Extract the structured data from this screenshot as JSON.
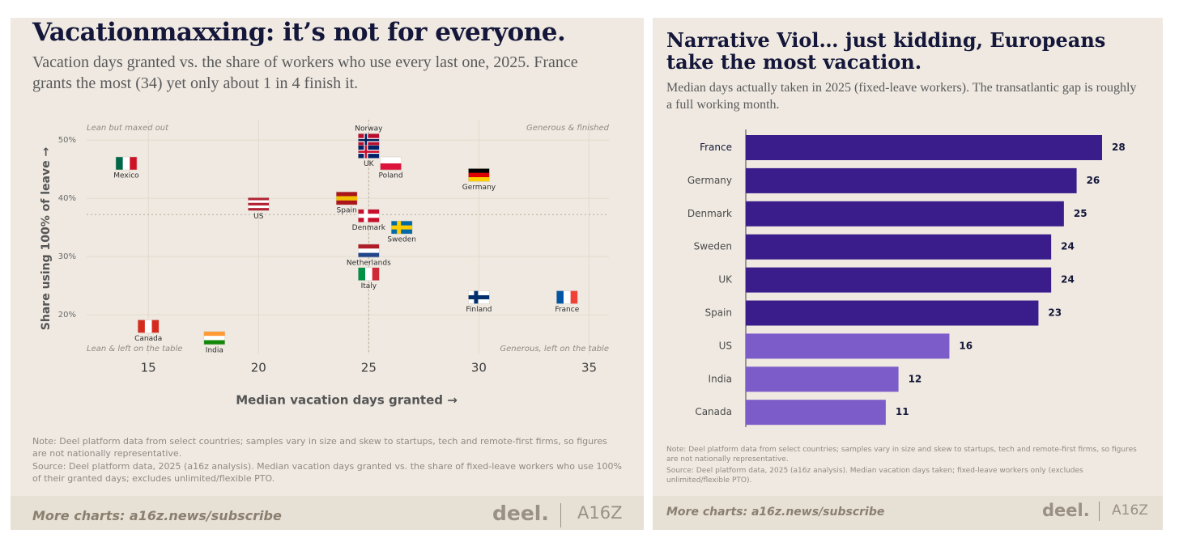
{
  "chart_data": [
    {
      "type": "scatter",
      "title": "Vacationmaxxing: it’s not for everyone.",
      "subtitle": "Vacation days granted vs. the share of workers who use every last one, 2025. France grants the most (34) yet only about 1 in 4 finish it.",
      "x_label": "Median vacation days granted →",
      "y_label": "Share using 100% of leave →",
      "quadrant_labels": {
        "top_left": "Lean but maxed out",
        "top_right": "Generous & finished",
        "bottom_left": "Lean & left on the table",
        "bottom_right": "Generous, left on the table"
      },
      "labels": [
        "Mexico",
        "Norway",
        "UK",
        "Poland",
        "Germany",
        "US",
        "Spain",
        "Denmark",
        "Sweden",
        "Netherlands",
        "Italy",
        "Finland",
        "France",
        "Canada",
        "India"
      ],
      "x": [
        14,
        25,
        25,
        26,
        30,
        20,
        24,
        25,
        26.5,
        25,
        25,
        30,
        34,
        15,
        18
      ],
      "values": [
        46,
        50,
        48,
        46,
        44,
        39,
        40,
        37,
        35,
        31,
        27,
        23,
        23,
        18,
        16
      ],
      "flags": [
        {
          "dir": "v",
          "colors": [
            "#006847",
            "#ffffff",
            "#ce1126"
          ]
        },
        {
          "dir": "cross",
          "colors": [
            "#ba0c2f",
            "#ffffff",
            "#00205b"
          ]
        },
        {
          "dir": "cross",
          "colors": [
            "#012169",
            "#ffffff",
            "#c8102e"
          ]
        },
        {
          "dir": "h",
          "colors": [
            "#ffffff",
            "#dc143c"
          ]
        },
        {
          "dir": "h",
          "colors": [
            "#000000",
            "#dd0000",
            "#ffce00"
          ]
        },
        {
          "dir": "h",
          "colors": [
            "#b22234",
            "#ffffff",
            "#b22234",
            "#ffffff",
            "#b22234"
          ]
        },
        {
          "dir": "h",
          "colors": [
            "#aa151b",
            "#f1bf00",
            "#aa151b"
          ]
        },
        {
          "dir": "cross",
          "colors": [
            "#c8102e",
            "#ffffff",
            "#ffffff"
          ]
        },
        {
          "dir": "cross",
          "colors": [
            "#006aa7",
            "#fecc00",
            "#fecc00"
          ]
        },
        {
          "dir": "h",
          "colors": [
            "#ae1c28",
            "#ffffff",
            "#21468b"
          ]
        },
        {
          "dir": "v",
          "colors": [
            "#009246",
            "#ffffff",
            "#ce2b37"
          ]
        },
        {
          "dir": "cross",
          "colors": [
            "#ffffff",
            "#002f6c",
            "#002f6c"
          ]
        },
        {
          "dir": "v",
          "colors": [
            "#0055a4",
            "#ffffff",
            "#ef4135"
          ]
        },
        {
          "dir": "v",
          "colors": [
            "#d52b1e",
            "#ffffff",
            "#d52b1e"
          ]
        },
        {
          "dir": "h",
          "colors": [
            "#ff9933",
            "#ffffff",
            "#138808"
          ]
        }
      ],
      "xlim": [
        12.2,
        35.9
      ],
      "ylim": [
        13.2,
        53.5
      ],
      "xticks": [
        15,
        20,
        25,
        30,
        35
      ],
      "yticks": [
        {
          "value": 20,
          "label": "20%"
        },
        {
          "value": 30,
          "label": "30%"
        },
        {
          "value": 40,
          "label": "40%"
        },
        {
          "value": 50,
          "label": "50%"
        }
      ],
      "reference_lines": {
        "x": 25,
        "y": 37.2
      },
      "grid": true,
      "note": "Note: Deel platform data from select countries; samples vary in size and skew to startups, tech and remote-first firms, so figures are not nationally representative.",
      "source": "Source: Deel platform data, 2025 (a16z analysis). Median vacation days granted vs. the share of fixed-leave workers who use 100% of their granted days; excludes unlimited/flexible PTO.",
      "footer": "More charts: a16z.news/subscribe",
      "brands": [
        "deel.",
        "A16Z"
      ]
    },
    {
      "type": "bar",
      "orientation": "horizontal",
      "title": "Narrative Viol… just kidding, Europeans take the most vacation.",
      "subtitle": "Median days actually taken in 2025 (fixed-leave workers). The transatlantic gap is roughly a full working month.",
      "categories": [
        "France",
        "Germany",
        "Denmark",
        "Sweden",
        "UK",
        "Spain",
        "US",
        "India",
        "Canada"
      ],
      "values": [
        28,
        26,
        25,
        24,
        24,
        23,
        16,
        12,
        11
      ],
      "colors": [
        "#3a1d8a",
        "#3a1d8a",
        "#3a1d8a",
        "#3a1d8a",
        "#3a1d8a",
        "#3a1d8a",
        "#7c5cc9",
        "#7c5cc9",
        "#7c5cc9"
      ],
      "xlim": [
        0,
        28
      ],
      "note": "Note: Deel platform data from select countries; samples vary in size and skew to startups, tech and remote-first firms, so figures are not nationally representative.",
      "source": "Source: Deel platform data, 2025 (a16z analysis). Median vacation days taken; fixed-leave workers only (excludes unlimited/flexible PTO).",
      "footer": "More charts: a16z.news/subscribe",
      "brands": [
        "deel.",
        "A16Z"
      ]
    }
  ]
}
